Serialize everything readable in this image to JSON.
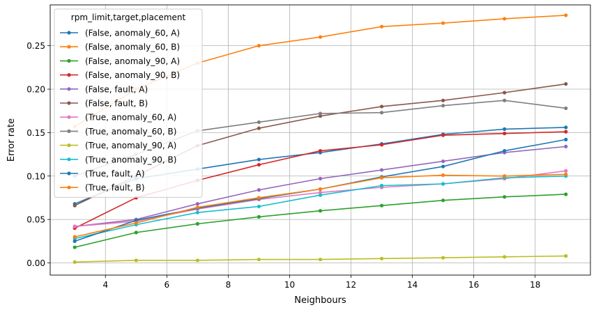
{
  "chart_data": {
    "type": "line",
    "xlabel": "Neighbours",
    "ylabel": "Error rate",
    "xlim": [
      2.2,
      19.8
    ],
    "ylim": [
      -0.014,
      0.297
    ],
    "xticks": [
      4,
      6,
      8,
      10,
      12,
      14,
      16,
      18
    ],
    "yticks": [
      0.0,
      0.05,
      0.1,
      0.15,
      0.2,
      0.25
    ],
    "ytick_labels": [
      "0.00",
      "0.05",
      "0.10",
      "0.15",
      "0.20",
      "0.25"
    ],
    "grid": true,
    "legend": {
      "title": "rpm_limit,target,placement",
      "placement": "upper-left"
    },
    "x": [
      3,
      5,
      7,
      9,
      11,
      13,
      15,
      17,
      19
    ],
    "series": [
      {
        "name": "(False, anomaly_60, A)",
        "color": "#1f77b4",
        "values": [
          0.068,
          0.097,
          0.108,
          0.119,
          0.127,
          0.137,
          0.148,
          0.154,
          0.156
        ]
      },
      {
        "name": "(False, anomaly_60, B)",
        "color": "#ff7f0e",
        "values": [
          0.157,
          0.2,
          0.23,
          0.25,
          0.26,
          0.272,
          0.276,
          0.281,
          0.285
        ]
      },
      {
        "name": "(False, anomaly_90, A)",
        "color": "#2ca02c",
        "values": [
          0.018,
          0.035,
          0.045,
          0.053,
          0.06,
          0.066,
          0.072,
          0.076,
          0.079
        ]
      },
      {
        "name": "(False, anomaly_90, B)",
        "color": "#d62728",
        "values": [
          0.04,
          0.075,
          0.095,
          0.113,
          0.129,
          0.136,
          0.147,
          0.149,
          0.151
        ]
      },
      {
        "name": "(False, fault, A)",
        "color": "#9467bd",
        "values": [
          0.042,
          0.05,
          0.068,
          0.084,
          0.097,
          0.107,
          0.117,
          0.127,
          0.134
        ]
      },
      {
        "name": "(False, fault, B)",
        "color": "#8c564b",
        "values": [
          0.066,
          0.1,
          0.135,
          0.155,
          0.169,
          0.18,
          0.187,
          0.196,
          0.206
        ]
      },
      {
        "name": "(True, anomaly_60, A)",
        "color": "#e377c2",
        "values": [
          0.042,
          0.048,
          0.062,
          0.073,
          0.081,
          0.087,
          0.091,
          0.097,
          0.106
        ]
      },
      {
        "name": "(True, anomaly_60, B)",
        "color": "#7f7f7f",
        "values": [
          0.1,
          0.125,
          0.152,
          0.162,
          0.172,
          0.173,
          0.181,
          0.187,
          0.178
        ]
      },
      {
        "name": "(True, anomaly_90, A)",
        "color": "#bcbd22",
        "values": [
          0.001,
          0.003,
          0.003,
          0.004,
          0.004,
          0.005,
          0.006,
          0.007,
          0.008
        ]
      },
      {
        "name": "(True, anomaly_90, B)",
        "color": "#17becf",
        "values": [
          0.028,
          0.044,
          0.058,
          0.065,
          0.078,
          0.089,
          0.091,
          0.098,
          0.1
        ]
      },
      {
        "name": "(True, fault, A)",
        "color": "#1f77b4",
        "values": [
          0.025,
          0.049,
          0.063,
          0.074,
          0.085,
          0.099,
          0.111,
          0.129,
          0.142
        ]
      },
      {
        "name": "(True, fault, B)",
        "color": "#ff7f0e",
        "values": [
          0.03,
          0.046,
          0.064,
          0.075,
          0.085,
          0.098,
          0.101,
          0.1,
          0.102
        ]
      }
    ]
  }
}
